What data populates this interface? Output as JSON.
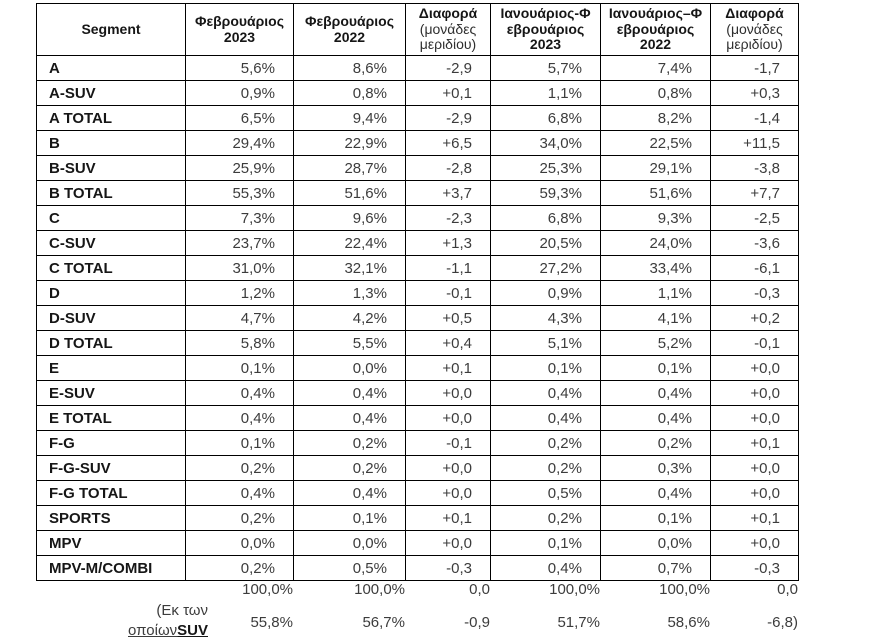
{
  "chart_data": {
    "type": "table",
    "headers": [
      {
        "main": "Segment",
        "sub": ""
      },
      {
        "main": "Φεβρουάριος\n2023",
        "sub": ""
      },
      {
        "main": "Φεβρουάριος\n2022",
        "sub": ""
      },
      {
        "main": "Διαφορά",
        "sub": "(μονάδες\nμεριδίου)"
      },
      {
        "main": "Ιανουάριος-Φ\nεβρουάριος\n2023",
        "sub": ""
      },
      {
        "main": "Ιανουάριος–Φ\nεβρουάριος\n2022",
        "sub": ""
      },
      {
        "main": "Διαφορά",
        "sub": "(μονάδες\nμεριδίου)"
      }
    ],
    "rows": [
      {
        "segment": "A",
        "values": [
          "5,6%",
          "8,6%",
          "-2,9",
          "5,7%",
          "7,4%",
          "-1,7"
        ]
      },
      {
        "segment": "A-SUV",
        "values": [
          "0,9%",
          "0,8%",
          "+0,1",
          "1,1%",
          "0,8%",
          "+0,3"
        ]
      },
      {
        "segment": "A TOTAL",
        "values": [
          "6,5%",
          "9,4%",
          "-2,9",
          "6,8%",
          "8,2%",
          "-1,4"
        ]
      },
      {
        "segment": "B",
        "values": [
          "29,4%",
          "22,9%",
          "+6,5",
          "34,0%",
          "22,5%",
          "+11,5"
        ]
      },
      {
        "segment": "B-SUV",
        "values": [
          "25,9%",
          "28,7%",
          "-2,8",
          "25,3%",
          "29,1%",
          "-3,8"
        ]
      },
      {
        "segment": "B TOTAL",
        "values": [
          "55,3%",
          "51,6%",
          "+3,7",
          "59,3%",
          "51,6%",
          "+7,7"
        ]
      },
      {
        "segment": "C",
        "values": [
          "7,3%",
          "9,6%",
          "-2,3",
          "6,8%",
          "9,3%",
          "-2,5"
        ]
      },
      {
        "segment": "C-SUV",
        "values": [
          "23,7%",
          "22,4%",
          "+1,3",
          "20,5%",
          "24,0%",
          "-3,6"
        ]
      },
      {
        "segment": "C TOTAL",
        "values": [
          "31,0%",
          "32,1%",
          "-1,1",
          "27,2%",
          "33,4%",
          "-6,1"
        ]
      },
      {
        "segment": "D",
        "values": [
          "1,2%",
          "1,3%",
          "-0,1",
          "0,9%",
          "1,1%",
          "-0,3"
        ]
      },
      {
        "segment": "D-SUV",
        "values": [
          "4,7%",
          "4,2%",
          "+0,5",
          "4,3%",
          "4,1%",
          "+0,2"
        ]
      },
      {
        "segment": "D TOTAL",
        "values": [
          "5,8%",
          "5,5%",
          "+0,4",
          "5,1%",
          "5,2%",
          "-0,1"
        ]
      },
      {
        "segment": "E",
        "values": [
          "0,1%",
          "0,0%",
          "+0,1",
          "0,1%",
          "0,1%",
          "+0,0"
        ]
      },
      {
        "segment": "E-SUV",
        "values": [
          "0,4%",
          "0,4%",
          "+0,0",
          "0,4%",
          "0,4%",
          "+0,0"
        ]
      },
      {
        "segment": "E TOTAL",
        "values": [
          "0,4%",
          "0,4%",
          "+0,0",
          "0,4%",
          "0,4%",
          "+0,0"
        ]
      },
      {
        "segment": "F-G",
        "values": [
          "0,1%",
          "0,2%",
          "-0,1",
          "0,2%",
          "0,2%",
          "+0,1"
        ]
      },
      {
        "segment": "F-G-SUV",
        "values": [
          "0,2%",
          "0,2%",
          "+0,0",
          "0,2%",
          "0,3%",
          "+0,0"
        ]
      },
      {
        "segment": "F-G TOTAL",
        "values": [
          "0,4%",
          "0,4%",
          "+0,0",
          "0,5%",
          "0,4%",
          "+0,0"
        ]
      },
      {
        "segment": "SPORTS",
        "values": [
          "0,2%",
          "0,1%",
          "+0,1",
          "0,2%",
          "0,1%",
          "+0,1"
        ]
      },
      {
        "segment": "MPV",
        "values": [
          "0,0%",
          "0,0%",
          "+0,0",
          "0,1%",
          "0,0%",
          "+0,0"
        ]
      },
      {
        "segment": "MPV-M/COMBI",
        "values": [
          "0,2%",
          "0,5%",
          "-0,3",
          "0,4%",
          "0,7%",
          "-0,3"
        ]
      }
    ],
    "total_row": {
      "values": [
        "100,0%",
        "100,0%",
        "0,0",
        "100,0%",
        "100,0%",
        "0,0"
      ]
    },
    "suv_row": {
      "label_line1": "(Εκ των",
      "label_line2": "οποίων",
      "label_line2_bold": "SUV",
      "values": [
        "55,8%",
        "56,7%",
        "-0,9",
        "51,7%",
        "58,6%",
        "-6,8)"
      ]
    },
    "colors": {
      "border": "#000000",
      "label_text": "#161616",
      "value_text": "#3c3c3c",
      "red_underline": "#e06060"
    }
  }
}
